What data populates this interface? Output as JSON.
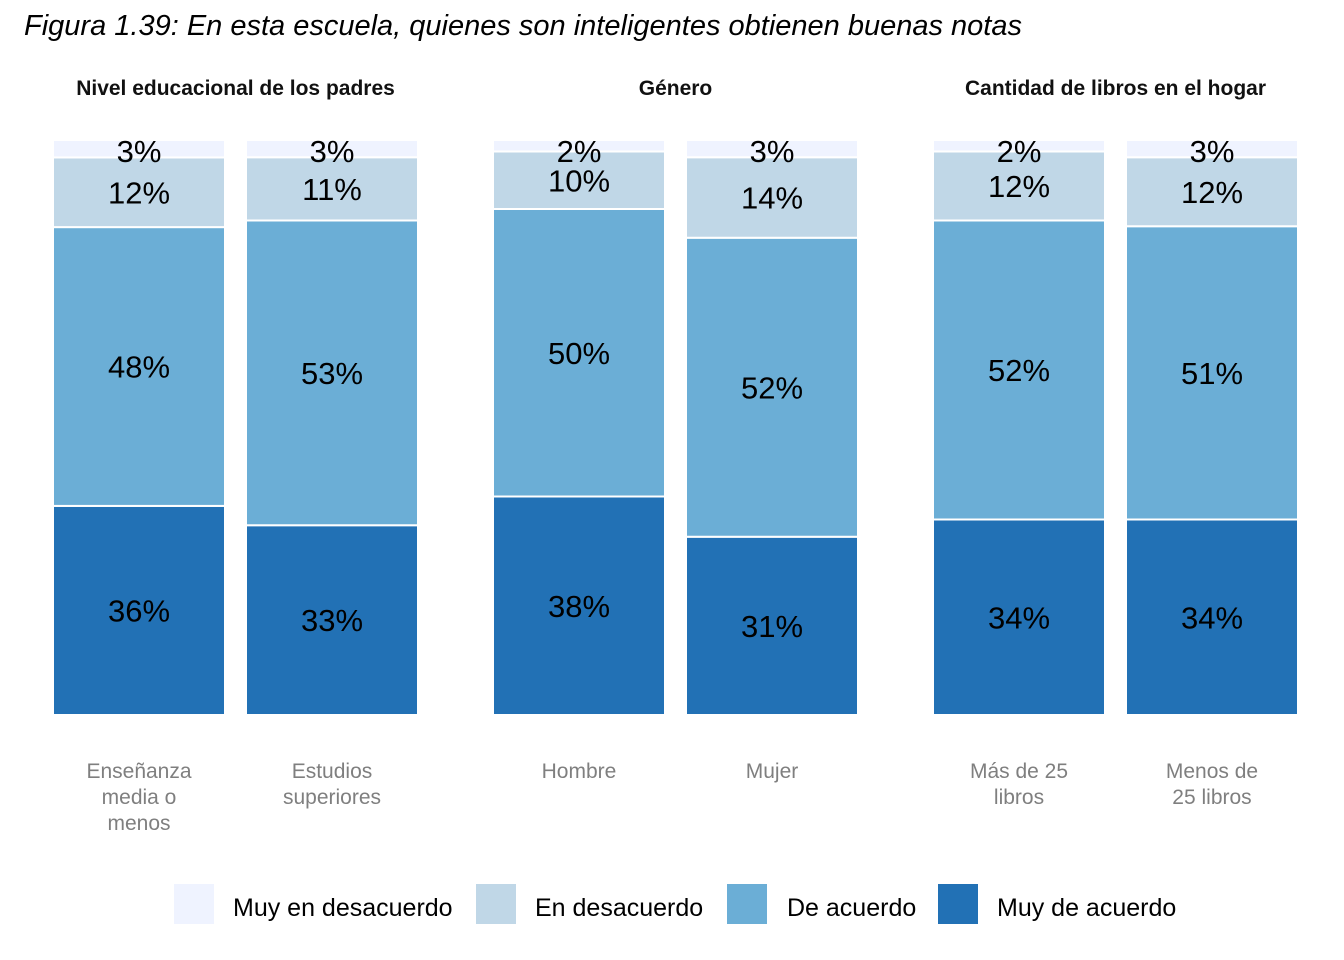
{
  "title": "Figura 1.39: En esta escuela, quienes son inteligentes obtienen buenas notas",
  "chart_data": {
    "type": "bar",
    "stacked": true,
    "normalized": true,
    "ylim": [
      0,
      100
    ],
    "grid": false,
    "legend_position": "bottom",
    "series": [
      {
        "name": "Muy de acuerdo",
        "color": "#2271b5"
      },
      {
        "name": "De acuerdo",
        "color": "#6baed6"
      },
      {
        "name": "En desacuerdo",
        "color": "#c0d7e7"
      },
      {
        "name": "Muy en desacuerdo",
        "color": "#eff3ff"
      }
    ],
    "legend_order": [
      "Muy en desacuerdo",
      "En desacuerdo",
      "De acuerdo",
      "Muy de acuerdo"
    ],
    "panels": [
      {
        "title": "Nivel educacional de los padres",
        "bars": [
          {
            "label": "Enseñanza media o menos",
            "label_lines": [
              "Enseñanza",
              "media o",
              "menos"
            ],
            "values": [
              36,
              48,
              12,
              3
            ],
            "labels": [
              "36%",
              "48%",
              "12%",
              "3%"
            ]
          },
          {
            "label": "Estudios superiores",
            "label_lines": [
              "Estudios",
              "superiores"
            ],
            "values": [
              33,
              53,
              11,
              3
            ],
            "labels": [
              "33%",
              "53%",
              "11%",
              "3%"
            ]
          }
        ]
      },
      {
        "title": "Género",
        "bars": [
          {
            "label": "Hombre",
            "label_lines": [
              "Hombre"
            ],
            "values": [
              38,
              50,
              10,
              2
            ],
            "labels": [
              "38%",
              "50%",
              "10%",
              "2%"
            ]
          },
          {
            "label": "Mujer",
            "label_lines": [
              "Mujer"
            ],
            "values": [
              31,
              52,
              14,
              3
            ],
            "labels": [
              "31%",
              "52%",
              "14%",
              "3%"
            ]
          }
        ]
      },
      {
        "title": "Cantidad de libros en el hogar",
        "bars": [
          {
            "label": "Más de 25 libros",
            "label_lines": [
              "Más de 25",
              "libros"
            ],
            "values": [
              34,
              52,
              12,
              2
            ],
            "labels": [
              "34%",
              "52%",
              "12%",
              "2%"
            ]
          },
          {
            "label": "Menos de 25 libros",
            "label_lines": [
              "Menos de",
              "25 libros"
            ],
            "values": [
              34,
              51,
              12,
              3
            ],
            "labels": [
              "34%",
              "51%",
              "12%",
              "3%"
            ]
          }
        ]
      }
    ]
  }
}
